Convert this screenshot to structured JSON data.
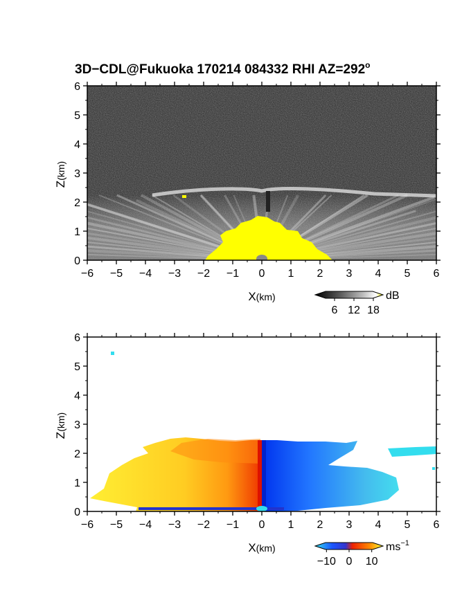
{
  "chart_data": [
    {
      "type": "heatmap",
      "panel": "reflectivity",
      "title": "3D−CDL@Fukuoka 170214 084332 RHI AZ=292",
      "title_superscript": "o",
      "xlabel": "X",
      "xlabel_unit": "(km)",
      "ylabel": "Z",
      "ylabel_unit": "(km)",
      "xlim": [
        -6,
        6
      ],
      "ylim": [
        0,
        6
      ],
      "x_ticks": [
        "−6",
        "−5",
        "−4",
        "−3",
        "−2",
        "−1",
        "0",
        "1",
        "2",
        "3",
        "4",
        "5",
        "6"
      ],
      "y_ticks": [
        "0",
        "1",
        "2",
        "3",
        "4",
        "5",
        "6"
      ],
      "colorbar": {
        "unit": "dB",
        "ticks": [
          "6",
          "12",
          "18"
        ],
        "tick_values": [
          6,
          12,
          18
        ],
        "range": [
          0,
          21
        ],
        "colors": [
          "#000000",
          "#555555",
          "#aaaaaa",
          "#ffffff",
          "#ffff00"
        ]
      },
      "features": {
        "boundary_layer_top_km": 2.2,
        "saturated_dome_top_km": 1.5,
        "saturated_color": "#ffff00",
        "background_color": "#2a2a2a"
      }
    },
    {
      "type": "heatmap",
      "panel": "doppler_velocity",
      "xlabel": "X",
      "xlabel_unit": "(km)",
      "ylabel": "Z",
      "ylabel_unit": "(km)",
      "xlim": [
        -6,
        6
      ],
      "ylim": [
        0,
        6
      ],
      "x_ticks": [
        "−6",
        "−5",
        "−4",
        "−3",
        "−2",
        "−1",
        "0",
        "1",
        "2",
        "3",
        "4",
        "5",
        "6"
      ],
      "y_ticks": [
        "0",
        "1",
        "2",
        "3",
        "4",
        "5",
        "6"
      ],
      "colorbar": {
        "unit": "ms",
        "unit_superscript": "−1",
        "ticks": [
          "−10",
          "0",
          "10"
        ],
        "tick_values": [
          -10,
          0,
          10
        ],
        "range": [
          -15,
          15
        ],
        "colors": [
          "#33ddee",
          "#1a55ff",
          "#3333cc",
          "#ee2200",
          "#ff8800",
          "#ffff33"
        ]
      },
      "features": {
        "echo_top_km": 2.3,
        "negative_side": "x > 0 (blue, toward radar)",
        "positive_side": "x < 0 (red/orange/yellow, away from radar)"
      }
    }
  ]
}
